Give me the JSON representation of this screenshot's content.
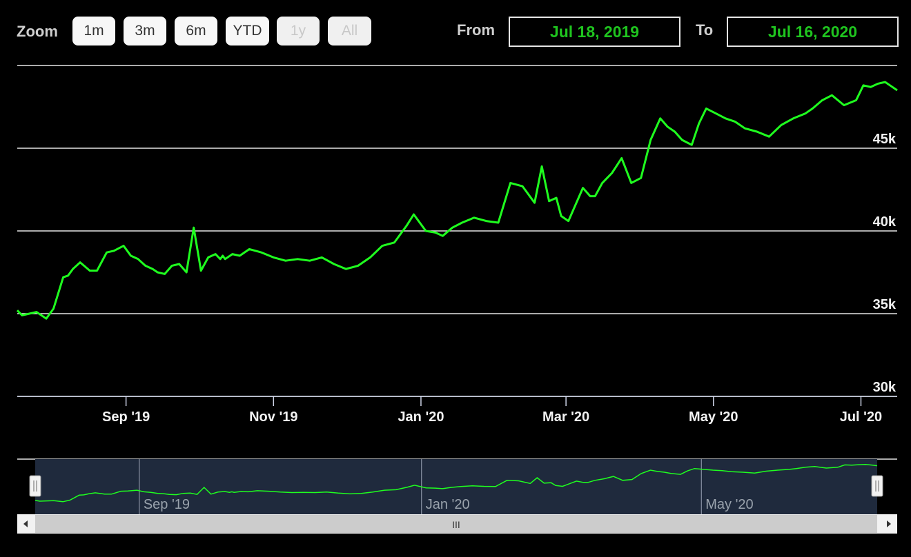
{
  "range_selector": {
    "zoom_label": "Zoom",
    "buttons": [
      {
        "label": "1m",
        "enabled": true
      },
      {
        "label": "3m",
        "enabled": true
      },
      {
        "label": "6m",
        "enabled": true
      },
      {
        "label": "YTD",
        "enabled": true
      },
      {
        "label": "1y",
        "enabled": false
      },
      {
        "label": "All",
        "enabled": false
      }
    ],
    "from_label": "From",
    "from_value": "Jul 18, 2019",
    "to_label": "To",
    "to_value": "Jul 16, 2020"
  },
  "navigator": {
    "labels": [
      "Sep '19",
      "Jan '20",
      "May '20"
    ],
    "scrollbar_grip": "III"
  },
  "colors": {
    "background": "#000000",
    "series": "#1fff1f",
    "navigator_fill": "#1f2a3d",
    "text": "#ffffff"
  },
  "chart_data": {
    "type": "line",
    "x_range": [
      "2019-07-18",
      "2020-07-16"
    ],
    "ylim": [
      30000,
      50000
    ],
    "y_ticks": [
      30000,
      35000,
      40000,
      45000
    ],
    "y_tick_labels": [
      "30k",
      "35k",
      "40k",
      "45k"
    ],
    "x_ticks": [
      "2019-09-01",
      "2019-11-01",
      "2020-01-01",
      "2020-03-01",
      "2020-05-01",
      "2020-07-01"
    ],
    "x_tick_labels": [
      "Sep '19",
      "Nov '19",
      "Jan '20",
      "Mar '20",
      "May '20",
      "Jul '20"
    ],
    "grid": true,
    "series": [
      {
        "x": [
          "2019-07-18",
          "2019-07-20",
          "2019-07-23",
          "2019-07-26",
          "2019-07-30",
          "2019-08-02",
          "2019-08-06",
          "2019-08-08",
          "2019-08-10",
          "2019-08-13",
          "2019-08-17",
          "2019-08-20",
          "2019-08-24",
          "2019-08-27",
          "2019-08-31",
          "2019-09-03",
          "2019-09-06",
          "2019-09-09",
          "2019-09-12",
          "2019-09-14",
          "2019-09-17",
          "2019-09-20",
          "2019-09-23",
          "2019-09-26",
          "2019-09-29",
          "2019-10-02",
          "2019-10-05",
          "2019-10-08",
          "2019-10-10",
          "2019-10-11",
          "2019-10-12",
          "2019-10-15",
          "2019-10-18",
          "2019-10-22",
          "2019-10-27",
          "2019-11-01",
          "2019-11-06",
          "2019-11-11",
          "2019-11-16",
          "2019-11-21",
          "2019-11-26",
          "2019-12-01",
          "2019-12-06",
          "2019-12-11",
          "2019-12-16",
          "2019-12-21",
          "2019-12-26",
          "2019-12-29",
          "2020-01-03",
          "2020-01-07",
          "2020-01-10",
          "2020-01-14",
          "2020-01-18",
          "2020-01-23",
          "2020-01-28",
          "2020-02-02",
          "2020-02-07",
          "2020-02-12",
          "2020-02-17",
          "2020-02-20",
          "2020-02-23",
          "2020-02-26",
          "2020-02-28",
          "2020-03-02",
          "2020-03-05",
          "2020-03-08",
          "2020-03-11",
          "2020-03-13",
          "2020-03-16",
          "2020-03-20",
          "2020-03-24",
          "2020-03-28",
          "2020-04-01",
          "2020-04-05",
          "2020-04-09",
          "2020-04-12",
          "2020-04-15",
          "2020-04-18",
          "2020-04-22",
          "2020-04-25",
          "2020-04-28",
          "2020-05-02",
          "2020-05-06",
          "2020-05-10",
          "2020-05-14",
          "2020-05-19",
          "2020-05-24",
          "2020-05-29",
          "2020-06-03",
          "2020-06-08",
          "2020-06-11",
          "2020-06-15",
          "2020-06-19",
          "2020-06-24",
          "2020-06-29",
          "2020-07-02",
          "2020-07-05",
          "2020-07-08",
          "2020-07-11",
          "2020-07-14",
          "2020-07-16"
        ],
        "values": [
          35200,
          34900,
          35000,
          35100,
          34700,
          35300,
          37200,
          37300,
          37700,
          38100,
          37600,
          37600,
          38700,
          38800,
          39100,
          38500,
          38300,
          37900,
          37700,
          37500,
          37400,
          37900,
          38000,
          37500,
          40200,
          37600,
          38400,
          38600,
          38300,
          38500,
          38300,
          38600,
          38500,
          38900,
          38700,
          38400,
          38200,
          38300,
          38200,
          38400,
          38000,
          37700,
          37900,
          38400,
          39100,
          39300,
          40300,
          41000,
          40000,
          39900,
          39700,
          40200,
          40500,
          40800,
          40600,
          40500,
          42900,
          42700,
          41700,
          43900,
          41800,
          42000,
          40900,
          40600,
          41600,
          42600,
          42100,
          42100,
          42900,
          43500,
          44400,
          42900,
          43200,
          45500,
          46800,
          46300,
          46000,
          45500,
          45200,
          46500,
          47400,
          47100,
          46800,
          46600,
          46200,
          46000,
          45700,
          46400,
          46800,
          47100,
          47400,
          47900,
          48200,
          47600,
          47900,
          48800,
          48700,
          48900,
          49000,
          48700,
          48500
        ]
      }
    ]
  }
}
